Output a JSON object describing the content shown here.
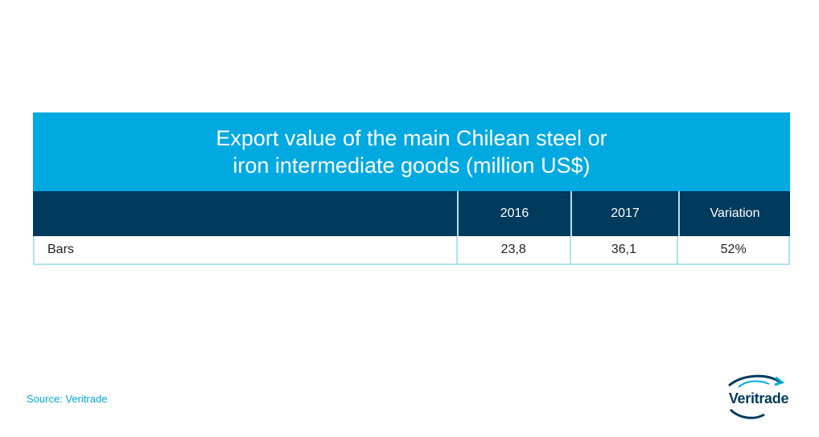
{
  "chart_data": {
    "type": "table",
    "title_lines": [
      "Export value of the main Chilean steel or",
      "iron intermediate goods (million US$)"
    ],
    "columns": [
      "",
      "2016",
      "2017",
      "Variation"
    ],
    "rows": [
      {
        "label": "Bars",
        "values": [
          "23,8",
          "36,1",
          "52%"
        ]
      }
    ]
  },
  "source": "Source: Veritrade",
  "logo": {
    "text": "Veritrade"
  },
  "colors": {
    "title_band": "#00a9e0",
    "header_row": "#003a5d",
    "border": "#b3e0f2",
    "source_text": "#00a9e0"
  }
}
